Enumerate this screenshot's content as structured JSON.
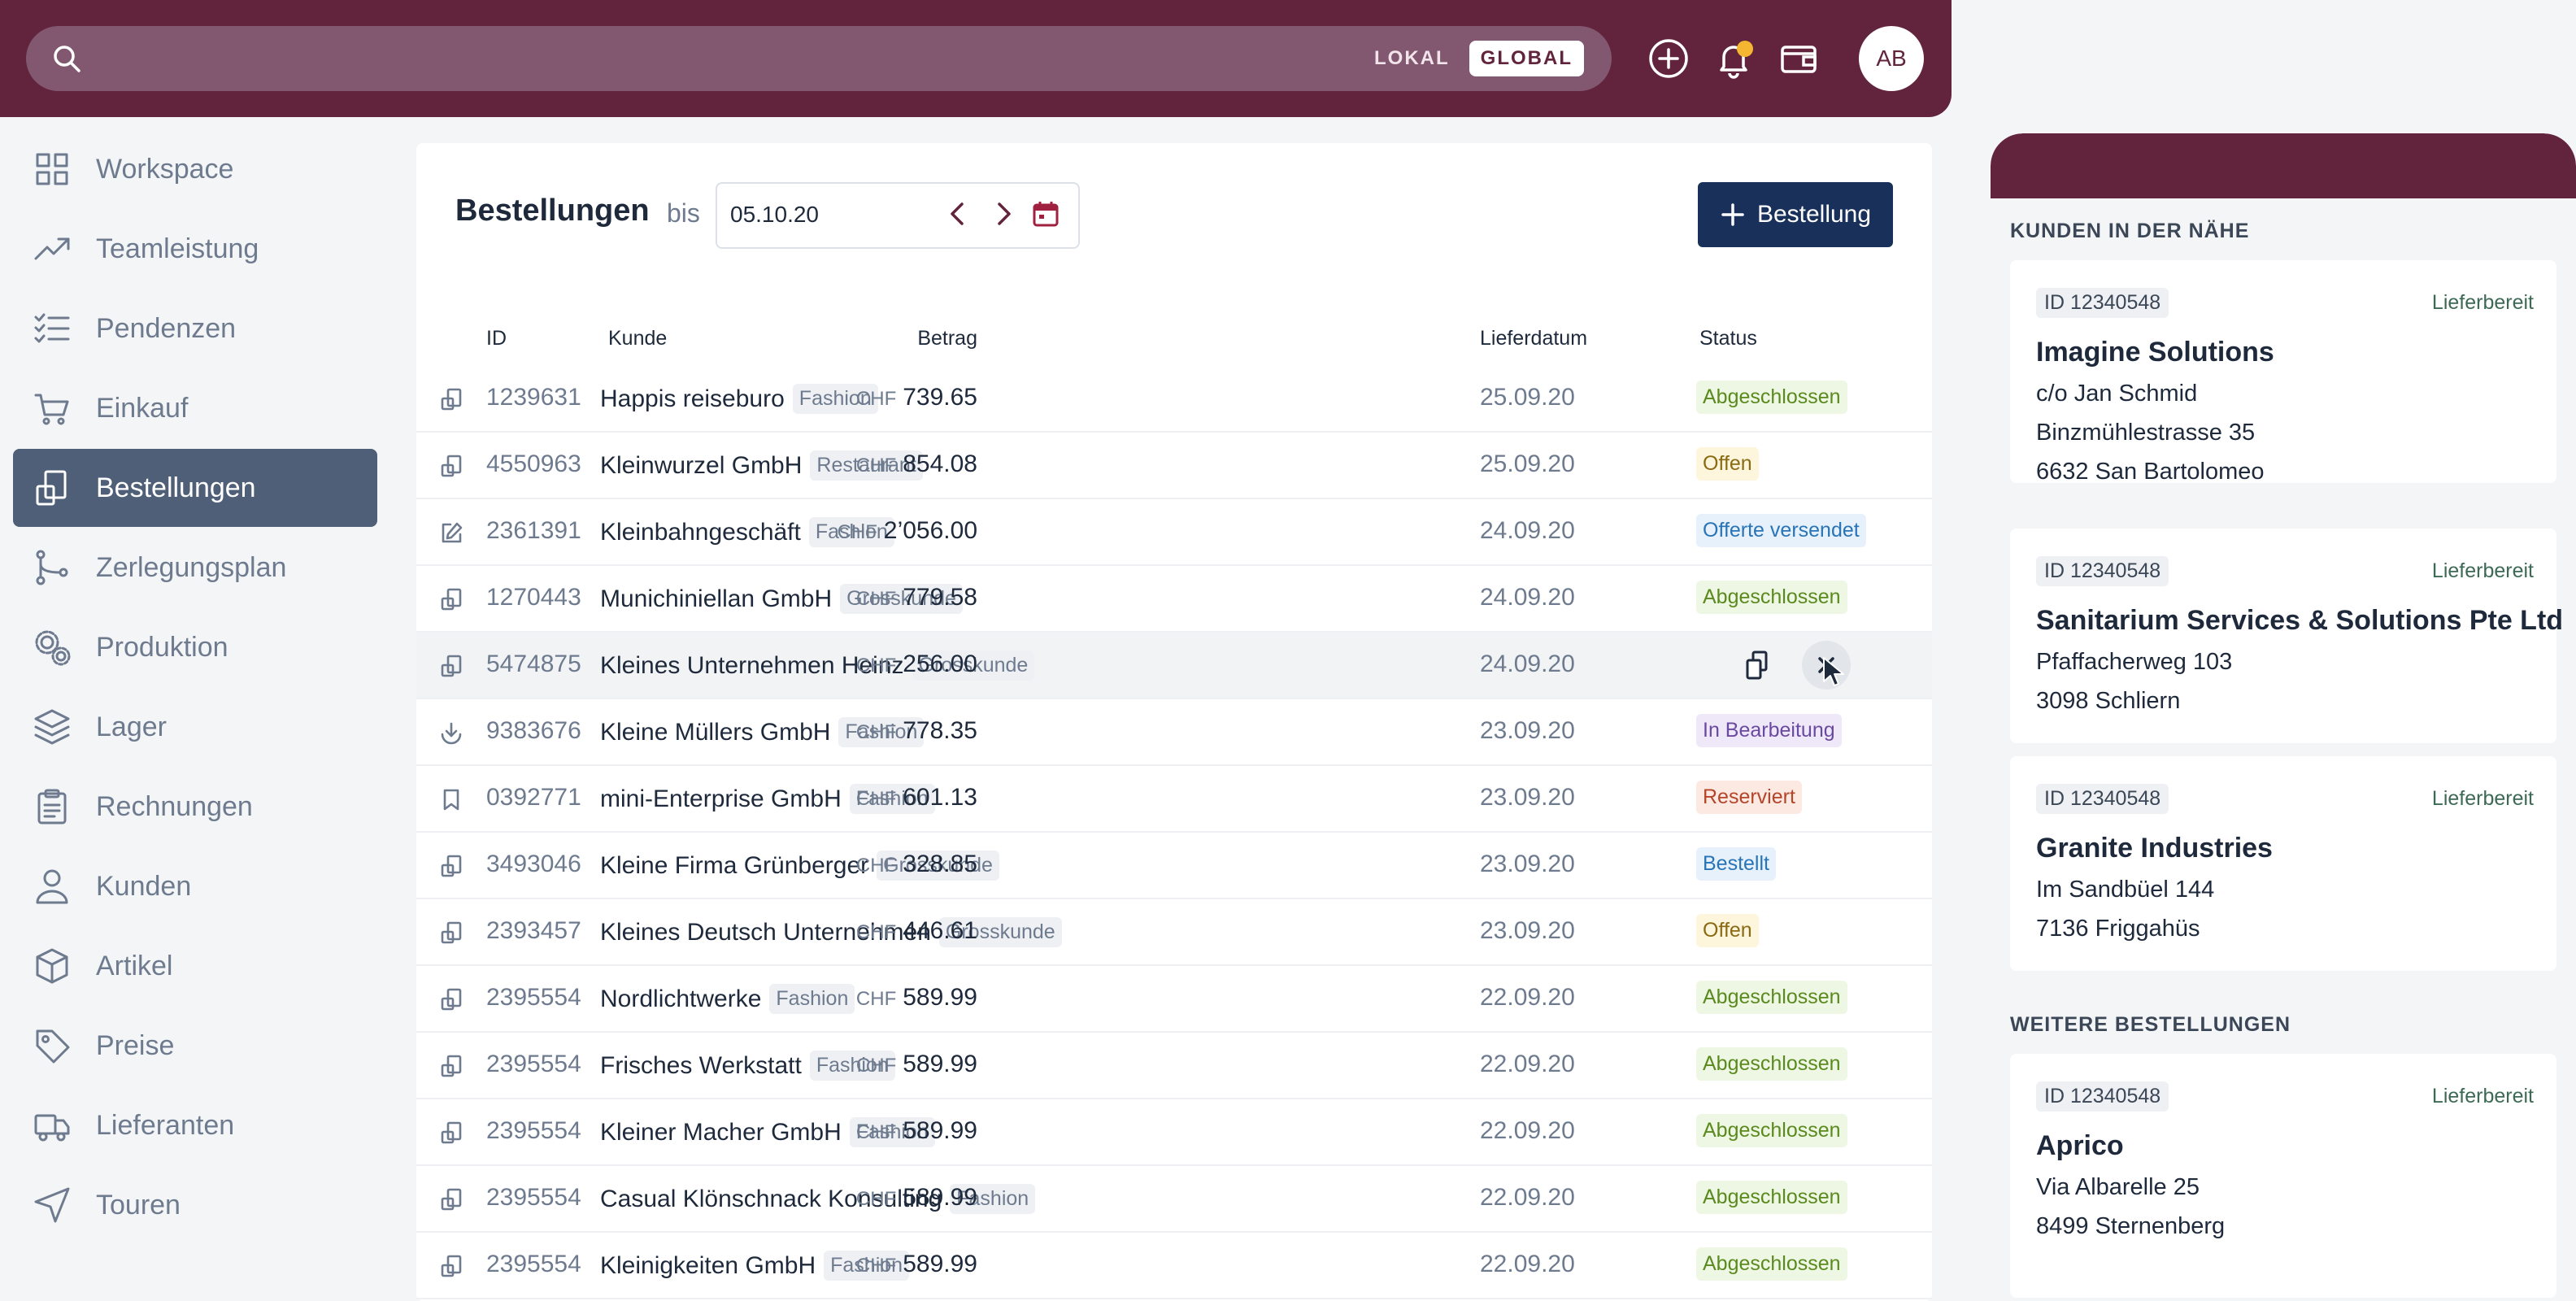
{
  "search": {
    "lokal": "LOKAL",
    "global": "GLOBAL"
  },
  "user": {
    "initials": "AB"
  },
  "colors": {
    "brand": "#62243d",
    "accent_button": "#18305a",
    "sidebar_active": "#4f5f78",
    "notification_dot": "#f5b731"
  },
  "sidebar": {
    "items": [
      {
        "label": "Workspace",
        "icon": "grid-icon"
      },
      {
        "label": "Teamleistung",
        "icon": "trend-up-icon"
      },
      {
        "label": "Pendenzen",
        "icon": "checklist-icon"
      },
      {
        "label": "Einkauf",
        "icon": "cart-icon"
      },
      {
        "label": "Bestellungen",
        "icon": "order-icon",
        "active": true
      },
      {
        "label": "Zerlegungsplan",
        "icon": "branch-icon"
      },
      {
        "label": "Produktion",
        "icon": "gears-icon"
      },
      {
        "label": "Lager",
        "icon": "layers-icon"
      },
      {
        "label": "Rechnungen",
        "icon": "clipboard-icon"
      },
      {
        "label": "Kunden",
        "icon": "user-icon"
      },
      {
        "label": "Artikel",
        "icon": "box-icon"
      },
      {
        "label": "Preise",
        "icon": "tag-icon"
      },
      {
        "label": "Lieferanten",
        "icon": "truck-icon"
      },
      {
        "label": "Touren",
        "icon": "navigation-icon"
      }
    ]
  },
  "main": {
    "title": "Bestellungen",
    "bis": "bis",
    "date": "05.10.20",
    "new_button": "Bestellung",
    "columns": {
      "id": "ID",
      "kunde": "Kunde",
      "betrag": "Betrag",
      "lieferdatum": "Lieferdatum",
      "status": "Status"
    },
    "rows": [
      {
        "icon": "order",
        "id": "1239631",
        "kunde": "Happis reiseburo",
        "tag": "Fashion",
        "cur": "CHF",
        "betrag": "739.65",
        "datum": "25.09.20",
        "status": "Abgeschlossen",
        "st": "green"
      },
      {
        "icon": "order",
        "id": "4550963",
        "kunde": "Kleinwurzel GmbH",
        "tag": "Restaurant",
        "cur": "CHF",
        "betrag": "854.08",
        "datum": "25.09.20",
        "status": "Offen",
        "st": "yellow"
      },
      {
        "icon": "edit",
        "id": "2361391",
        "kunde": "Kleinbahngeschäft",
        "tag": "Fashion",
        "cur": "CHF",
        "betrag": "2’056.00",
        "datum": "24.09.20",
        "status": "Offerte versendet",
        "st": "blue"
      },
      {
        "icon": "order",
        "id": "1270443",
        "kunde": "Munichiniellan GmbH",
        "tag": "Grosskunde",
        "cur": "CHF",
        "betrag": "779.58",
        "datum": "24.09.20",
        "status": "Abgeschlossen",
        "st": "green"
      },
      {
        "icon": "order",
        "id": "5474875",
        "kunde": "Kleines Unternehmen Heinz",
        "tag": "Grosskunde",
        "cur": "CHF",
        "betrag": "256.00",
        "datum": "24.09.20",
        "status": "",
        "st": "none",
        "hover": true
      },
      {
        "icon": "download",
        "id": "9383676",
        "kunde": "Kleine Müllers GmbH",
        "tag": "Fashion",
        "cur": "CHF",
        "betrag": "778.35",
        "datum": "23.09.20",
        "status": "In Bearbeitung",
        "st": "purple"
      },
      {
        "icon": "bookmark",
        "id": "0392771",
        "kunde": "mini-Enterprise GmbH",
        "tag": "Fashion",
        "cur": "CHF",
        "betrag": "601.13",
        "datum": "23.09.20",
        "status": "Reserviert",
        "st": "red"
      },
      {
        "icon": "order",
        "id": "3493046",
        "kunde": "Kleine Firma Grünberger",
        "tag": "Grosskunde",
        "cur": "CHF",
        "betrag": "328.85",
        "datum": "23.09.20",
        "status": "Bestellt",
        "st": "blue"
      },
      {
        "icon": "order",
        "id": "2393457",
        "kunde": "Kleines Deutsch Unternehmen",
        "tag": "Grosskunde",
        "cur": "CHF",
        "betrag": "446.61",
        "datum": "23.09.20",
        "status": "Offen",
        "st": "yellow"
      },
      {
        "icon": "order",
        "id": "2395554",
        "kunde": "Nordlichtwerke",
        "tag": "Fashion",
        "cur": "CHF",
        "betrag": "589.99",
        "datum": "22.09.20",
        "status": "Abgeschlossen",
        "st": "green"
      },
      {
        "icon": "order",
        "id": "2395554",
        "kunde": "Frisches Werkstatt",
        "tag": "Fashion",
        "cur": "CHF",
        "betrag": "589.99",
        "datum": "22.09.20",
        "status": "Abgeschlossen",
        "st": "green"
      },
      {
        "icon": "order",
        "id": "2395554",
        "kunde": "Kleiner Macher GmbH",
        "tag": "Fashion",
        "cur": "CHF",
        "betrag": "589.99",
        "datum": "22.09.20",
        "status": "Abgeschlossen",
        "st": "green"
      },
      {
        "icon": "order",
        "id": "2395554",
        "kunde": "Casual Klönschnack Konsulting",
        "tag": "Fashion",
        "cur": "CHF",
        "betrag": "589.99",
        "datum": "22.09.20",
        "status": "Abgeschlossen",
        "st": "green"
      },
      {
        "icon": "order",
        "id": "2395554",
        "kunde": "Kleinigkeiten GmbH",
        "tag": "Fashion",
        "cur": "CHF",
        "betrag": "589.99",
        "datum": "22.09.20",
        "status": "Abgeschlossen",
        "st": "green"
      }
    ]
  },
  "right": {
    "section1": "KUNDEN IN DER NÄHE",
    "section2": "WEITERE BESTELLUNGEN",
    "cards": [
      {
        "id": "ID 12340548",
        "status": "Lieferbereit",
        "name": "Imagine Solutions",
        "lines": [
          "c/o Jan Schmid",
          "Binzmühlestrasse 35",
          "6632 San Bartolomeo"
        ]
      },
      {
        "id": "ID 12340548",
        "status": "Lieferbereit",
        "name": "Sanitarium Services & Solutions Pte Ltd",
        "lines": [
          "Pfaffacherweg 103",
          "3098 Schliern"
        ]
      },
      {
        "id": "ID 12340548",
        "status": "Lieferbereit",
        "name": "Granite Industries",
        "lines": [
          "Im Sandbüel 144",
          "7136 Friggahüs"
        ]
      },
      {
        "id": "ID 12340548",
        "status": "Lieferbereit",
        "name": "Aprico",
        "lines": [
          "Via Albarelle 25",
          "8499 Sternenberg"
        ]
      }
    ]
  }
}
